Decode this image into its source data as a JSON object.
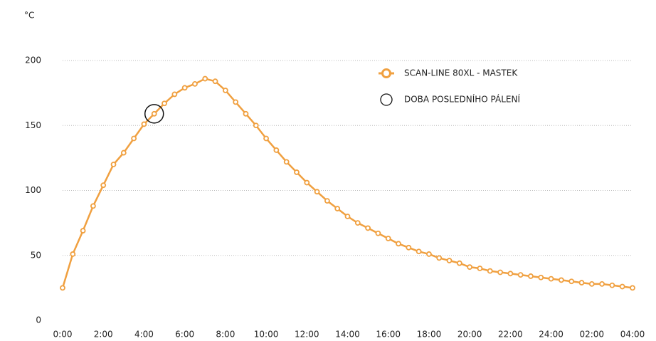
{
  "chart_data": {
    "type": "line",
    "y_unit": "°C",
    "x": [
      0,
      0.5,
      1,
      1.5,
      2,
      2.5,
      3,
      3.5,
      4,
      4.5,
      5,
      5.5,
      6,
      6.5,
      7,
      7.5,
      8,
      8.5,
      9,
      9.5,
      10,
      10.5,
      11,
      11.5,
      12,
      12.5,
      13,
      13.5,
      14,
      14.5,
      15,
      15.5,
      16,
      16.5,
      17,
      17.5,
      18,
      18.5,
      19,
      19.5,
      20,
      20.5,
      21,
      21.5,
      22,
      22.5,
      23,
      23.5,
      24,
      24.5,
      25,
      25.5,
      26,
      26.5,
      27,
      27.5,
      28
    ],
    "series": [
      {
        "name": "SCAN-LINE 80XL - MASTEK",
        "color": "#f0a040",
        "values": [
          25,
          51,
          69,
          88,
          104,
          120,
          129,
          140,
          151,
          159,
          167,
          174,
          179,
          182,
          186,
          184,
          177,
          168,
          159,
          150,
          140,
          131,
          122,
          114,
          106,
          99,
          92,
          86,
          80,
          75,
          71,
          67,
          63,
          59,
          56,
          53,
          51,
          48,
          46,
          44,
          41,
          40,
          38,
          37,
          36,
          35,
          34,
          33,
          32,
          31,
          30,
          29,
          28,
          28,
          27,
          26,
          25
        ]
      }
    ],
    "highlight": {
      "name": "DOBA POSLEDNÍHO PÁLENÍ",
      "x": 4.5,
      "color": "#111111"
    },
    "xlim": [
      0,
      28
    ],
    "xticks": [
      {
        "value": 0,
        "label": "0:00"
      },
      {
        "value": 2,
        "label": "2:00"
      },
      {
        "value": 4,
        "label": "4:00"
      },
      {
        "value": 6,
        "label": "6:00"
      },
      {
        "value": 8,
        "label": "8:00"
      },
      {
        "value": 10,
        "label": "10:00"
      },
      {
        "value": 12,
        "label": "12:00"
      },
      {
        "value": 14,
        "label": "14:00"
      },
      {
        "value": 16,
        "label": "16:00"
      },
      {
        "value": 18,
        "label": "18:00"
      },
      {
        "value": 20,
        "label": "20:00"
      },
      {
        "value": 22,
        "label": "22:00"
      },
      {
        "value": 24,
        "label": "24:00"
      },
      {
        "value": 26,
        "label": "02:00"
      },
      {
        "value": 28,
        "label": "04:00"
      }
    ],
    "ylim": [
      0,
      200
    ],
    "yticks": [
      0,
      50,
      100,
      150,
      200
    ],
    "grid": true
  }
}
